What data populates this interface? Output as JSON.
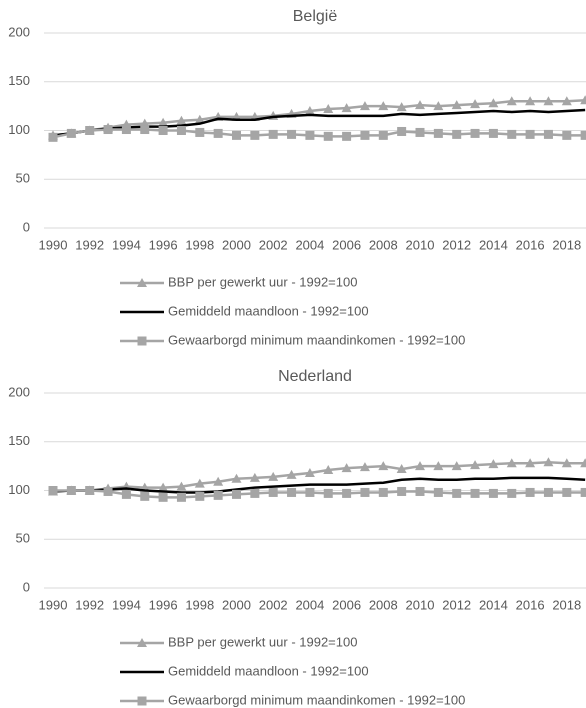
{
  "chart_data": [
    {
      "type": "line",
      "title": "België",
      "categories": [
        "1990",
        null,
        "1992",
        null,
        "1994",
        null,
        "1996",
        null,
        "1998",
        null,
        "2000",
        null,
        "2002",
        null,
        "2004",
        null,
        "2006",
        null,
        "2008",
        null,
        "2010",
        null,
        "2012",
        null,
        "2014",
        null,
        "2016",
        null,
        "2018",
        null
      ],
      "series": [
        {
          "name": "BBP per gewerkt uur - 1992=100",
          "color": "#a5a5a5",
          "marker": "triangle",
          "values": [
            95,
            97,
            100,
            103,
            106,
            107,
            108,
            110,
            111,
            114,
            114,
            114,
            115,
            117,
            120,
            122,
            123,
            125,
            125,
            124,
            126,
            125,
            126,
            127,
            128,
            130,
            130,
            130,
            130,
            131
          ]
        },
        {
          "name": "Gemiddeld maandloon - 1992=100",
          "color": "#000000",
          "marker": "none",
          "values": [
            95,
            97,
            100,
            102,
            103,
            104,
            104,
            105,
            107,
            112,
            111,
            111,
            114,
            115,
            116,
            115,
            115,
            115,
            115,
            117,
            116,
            117,
            118,
            119,
            120,
            119,
            120,
            119,
            120,
            121
          ]
        },
        {
          "name": "Gewaarborgd minimum maandinkomen - 1992=100",
          "color": "#a5a5a5",
          "marker": "square",
          "values": [
            93,
            97,
            100,
            101,
            101,
            101,
            100,
            100,
            98,
            97,
            95,
            95,
            96,
            96,
            95,
            94,
            94,
            95,
            95,
            99,
            98,
            97,
            96,
            97,
            97,
            96,
            96,
            96,
            95,
            95
          ]
        }
      ],
      "ylim": [
        0,
        200
      ],
      "yticks": [
        0,
        50,
        100,
        150,
        200
      ],
      "grid": true,
      "legend": "bottom"
    },
    {
      "type": "line",
      "title": "Nederland",
      "categories": [
        "1990",
        null,
        "1992",
        null,
        "1994",
        null,
        "1996",
        null,
        "1998",
        null,
        "2000",
        null,
        "2002",
        null,
        "2004",
        null,
        "2006",
        null,
        "2008",
        null,
        "2010",
        null,
        "2012",
        null,
        "2014",
        null,
        "2016",
        null,
        "2018",
        null
      ],
      "series": [
        {
          "name": "BBP per gewerkt uur - 1992=100",
          "color": "#a5a5a5",
          "marker": "triangle",
          "values": [
            99,
            100,
            100,
            102,
            104,
            103,
            103,
            104,
            107,
            109,
            112,
            113,
            114,
            116,
            118,
            121,
            123,
            124,
            125,
            122,
            125,
            125,
            125,
            126,
            127,
            128,
            128,
            129,
            128,
            128
          ]
        },
        {
          "name": "Gemiddeld maandloon - 1992=100",
          "color": "#000000",
          "marker": "none",
          "values": [
            99,
            100,
            100,
            101,
            102,
            100,
            99,
            98,
            98,
            99,
            101,
            103,
            104,
            105,
            106,
            106,
            106,
            107,
            108,
            111,
            112,
            111,
            111,
            112,
            112,
            113,
            113,
            113,
            112,
            111
          ]
        },
        {
          "name": "Gewaarborgd minimum maandinkomen - 1992=100",
          "color": "#a5a5a5",
          "marker": "square",
          "values": [
            100,
            100,
            100,
            99,
            96,
            94,
            93,
            93,
            94,
            95,
            96,
            97,
            98,
            98,
            98,
            97,
            97,
            98,
            98,
            99,
            99,
            98,
            97,
            97,
            97,
            97,
            98,
            98,
            98,
            98
          ]
        }
      ],
      "ylim": [
        0,
        200
      ],
      "yticks": [
        0,
        50,
        100,
        150,
        200
      ],
      "grid": true,
      "legend": "bottom"
    }
  ]
}
